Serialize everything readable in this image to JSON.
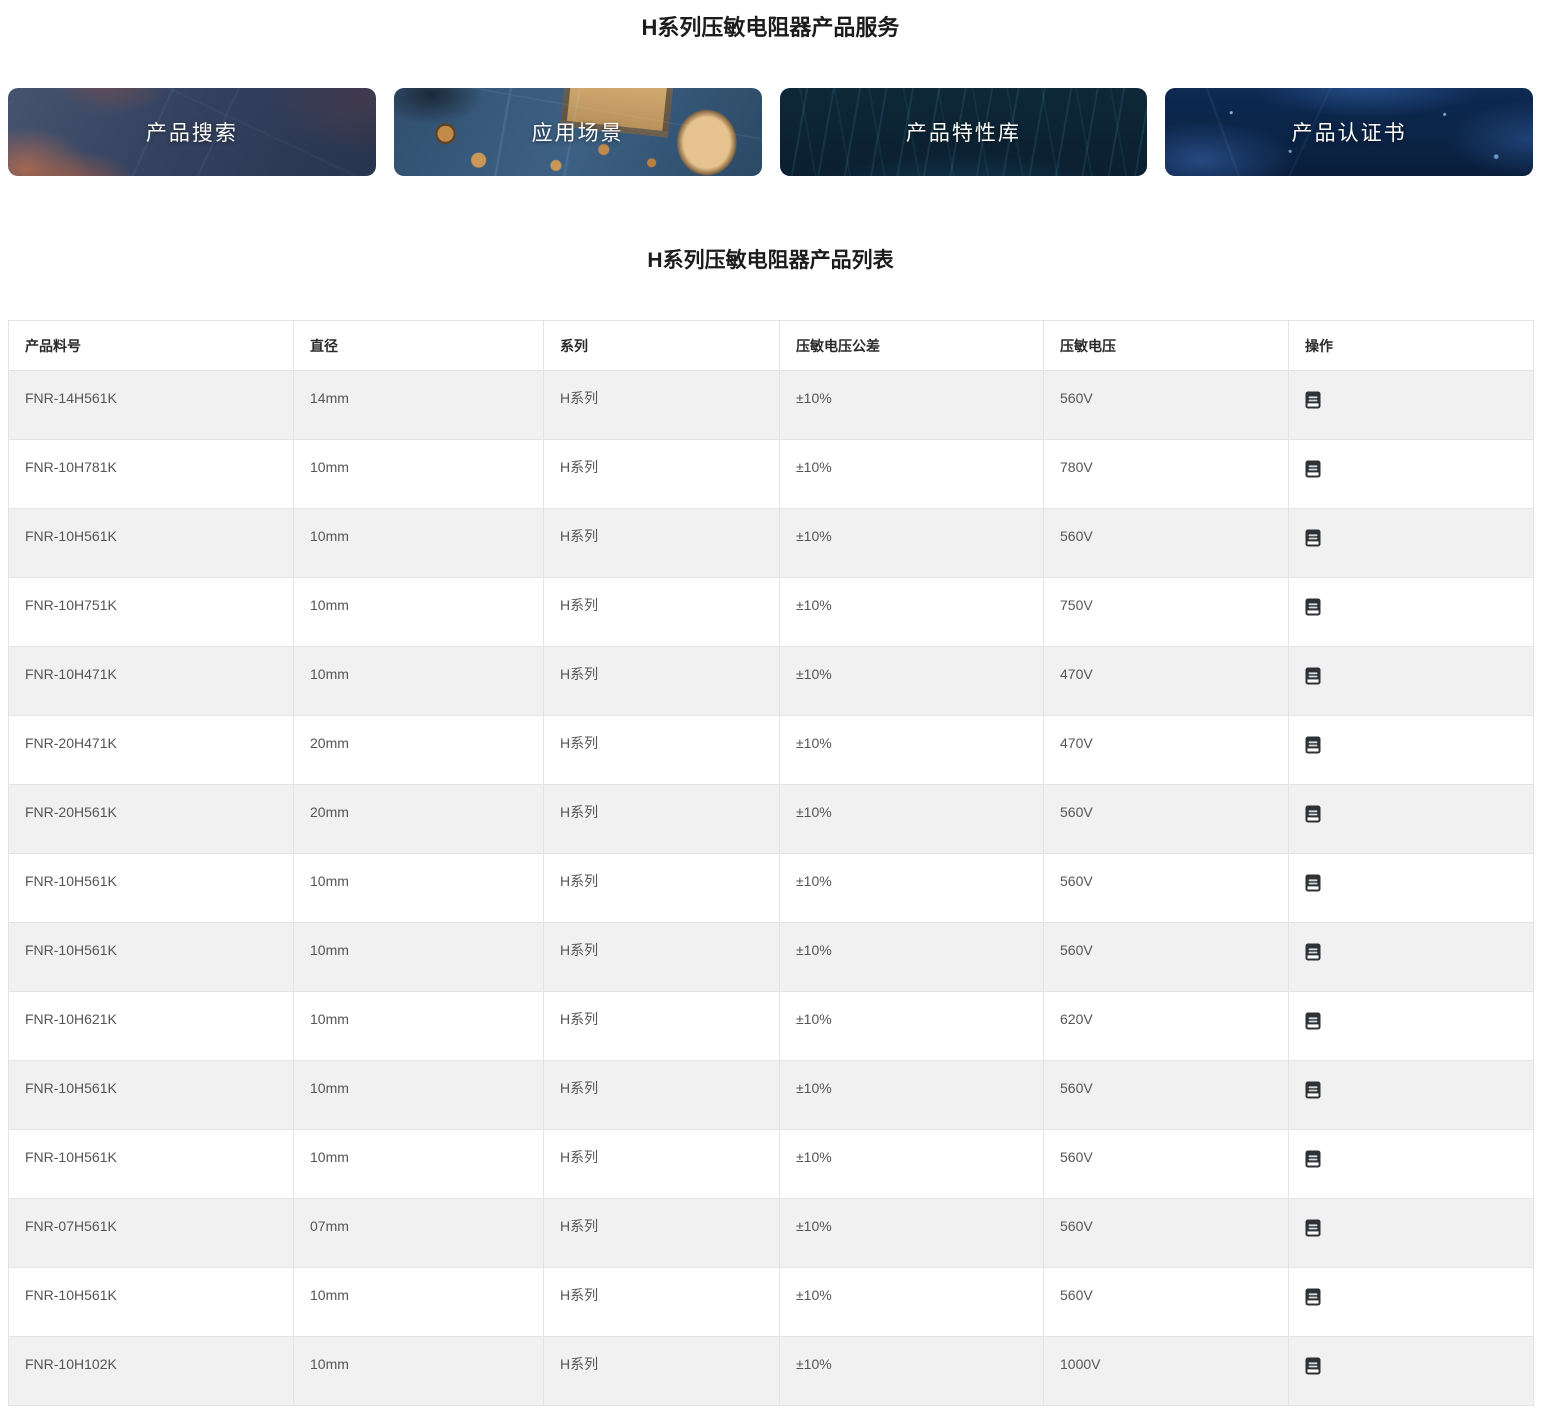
{
  "page": {
    "title": "H系列压敏电阻器产品服务",
    "list_title": "H系列压敏电阻器产品列表"
  },
  "banners": [
    {
      "id": "product-search",
      "label": "产品搜索"
    },
    {
      "id": "application-scenarios",
      "label": "应用场景"
    },
    {
      "id": "product-characteristics",
      "label": "产品特性库"
    },
    {
      "id": "product-certificates",
      "label": "产品认证书"
    }
  ],
  "table": {
    "columns": [
      "产品料号",
      "直径",
      "系列",
      "压敏电压公差",
      "压敏电压",
      "操作"
    ],
    "action_icon": "document-icon",
    "rows": [
      [
        "FNR-14H561K",
        "14mm",
        "H系列",
        "±10%",
        "560V"
      ],
      [
        "FNR-10H781K",
        "10mm",
        "H系列",
        "±10%",
        "780V"
      ],
      [
        "FNR-10H561K",
        "10mm",
        "H系列",
        "±10%",
        "560V"
      ],
      [
        "FNR-10H751K",
        "10mm",
        "H系列",
        "±10%",
        "750V"
      ],
      [
        "FNR-10H471K",
        "10mm",
        "H系列",
        "±10%",
        "470V"
      ],
      [
        "FNR-20H471K",
        "20mm",
        "H系列",
        "±10%",
        "470V"
      ],
      [
        "FNR-20H561K",
        "20mm",
        "H系列",
        "±10%",
        "560V"
      ],
      [
        "FNR-10H561K",
        "10mm",
        "H系列",
        "±10%",
        "560V"
      ],
      [
        "FNR-10H561K",
        "10mm",
        "H系列",
        "±10%",
        "560V"
      ],
      [
        "FNR-10H621K",
        "10mm",
        "H系列",
        "±10%",
        "620V"
      ],
      [
        "FNR-10H561K",
        "10mm",
        "H系列",
        "±10%",
        "560V"
      ],
      [
        "FNR-10H561K",
        "10mm",
        "H系列",
        "±10%",
        "560V"
      ],
      [
        "FNR-07H561K",
        "07mm",
        "H系列",
        "±10%",
        "560V"
      ],
      [
        "FNR-10H561K",
        "10mm",
        "H系列",
        "±10%",
        "560V"
      ],
      [
        "FNR-10H102K",
        "10mm",
        "H系列",
        "±10%",
        "1000V"
      ]
    ]
  },
  "colors": {
    "row_stripe": "#f1f1f2",
    "table_border": "#e4e4e4",
    "header_text": "#2b2b2b",
    "cell_text": "#555555",
    "banner_text": "#ffffff",
    "banner_navy": "#0b1f30",
    "banner_deep_blue": "#0d2a52",
    "banner_slate": "#344260",
    "banner_pcb_blue": "#3d6184",
    "icon_body": "#2e3136"
  }
}
